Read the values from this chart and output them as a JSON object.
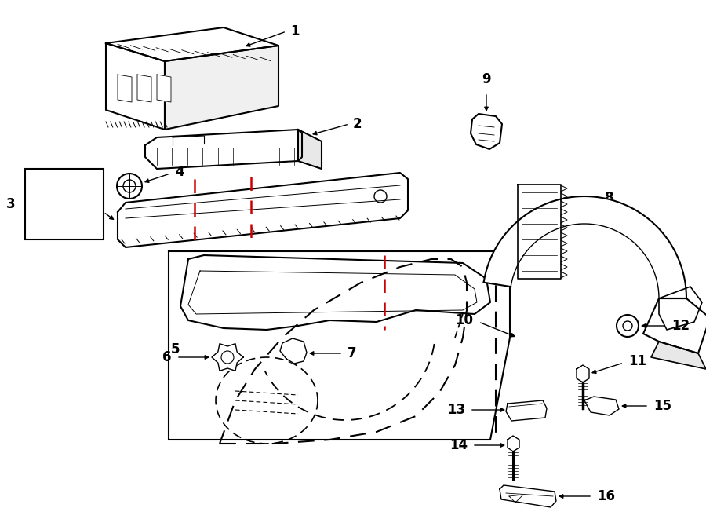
{
  "bg_color": "#ffffff",
  "line_color": "#000000",
  "red_dash_color": "#cc0000",
  "figsize": [
    9.0,
    6.61
  ],
  "dpi": 100
}
